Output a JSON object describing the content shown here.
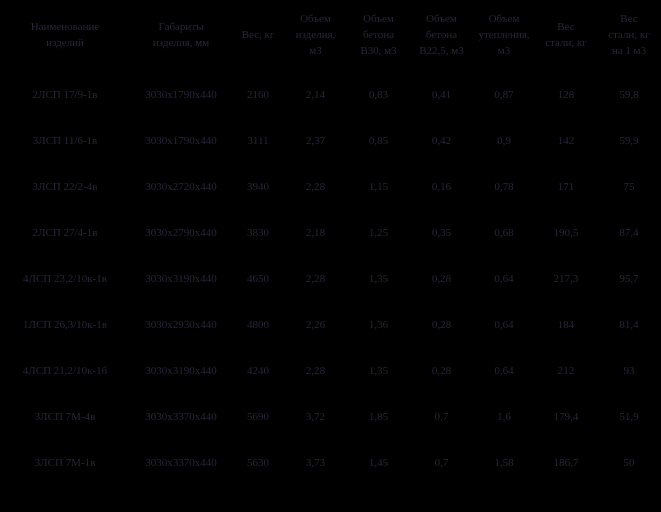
{
  "table": {
    "text_color": "#262639",
    "background_color": "#000000",
    "columns": [
      {
        "label": "Наименование\nизделий"
      },
      {
        "label": "Габариты\nизделия, мм"
      },
      {
        "label": "Вес, кг"
      },
      {
        "label": "Объем\nизделия,\nм3"
      },
      {
        "label": "Объем\nбетона\nВ30, м3"
      },
      {
        "label": "Объем\nбетона\nВ22,5, м3"
      },
      {
        "label": "Объем\nутепления,\nм3"
      },
      {
        "label": "Вес\nстали, кг"
      },
      {
        "label": "Вес\nстали, кг\nна 1 м3"
      }
    ],
    "rows": [
      [
        "2ЛСП 17/9-1в",
        "3030х1790х440",
        "2160",
        "2,14",
        "0,83",
        "0,41",
        "0,87",
        "128",
        "59,8"
      ],
      [
        "3ЛСП 11/6-1в",
        "3030х1790х440",
        "3111",
        "2,37",
        "0,85",
        "0,42",
        "0,9",
        "142",
        "59,9"
      ],
      [
        "3ЛСП 22/2-4в",
        "3030х2720х440",
        "3940",
        "2,28",
        "1,15",
        "0,16",
        "0,78",
        "171",
        "75"
      ],
      [
        "2ЛСП 27/4-1в",
        "3030х2790х440",
        "3830",
        "2,18",
        "1,25",
        "0,35",
        "0,68",
        "190,5",
        "87,4"
      ],
      [
        "4ЛСП 23,2/10к-1в",
        "3030х3190х440",
        "4650",
        "2,28",
        "1,35",
        "0,28",
        "0,64",
        "217,3",
        "95,7"
      ],
      [
        "1ЛСП 26,3/10к-1в",
        "3030х2930х440",
        "4800",
        "2,26",
        "1,36",
        "0,28",
        "0,64",
        "184",
        "81,4"
      ],
      [
        "4ЛСП 21,2/10к-1б",
        "3030х3190х440",
        "4240",
        "2,28",
        "1,35",
        "0,28",
        "0,64",
        "212",
        "93"
      ],
      [
        "3ЛСП 7М-4в",
        "3030х3370х440",
        "5690",
        "3,72",
        "1,85",
        "0,7",
        "1,6",
        "179,4",
        "51,9"
      ],
      [
        "3ЛСП 7М-1в",
        "3030х3370х440",
        "5630",
        "3,73",
        "1,45",
        "0,7",
        "1,58",
        "186,7",
        "50"
      ]
    ]
  }
}
